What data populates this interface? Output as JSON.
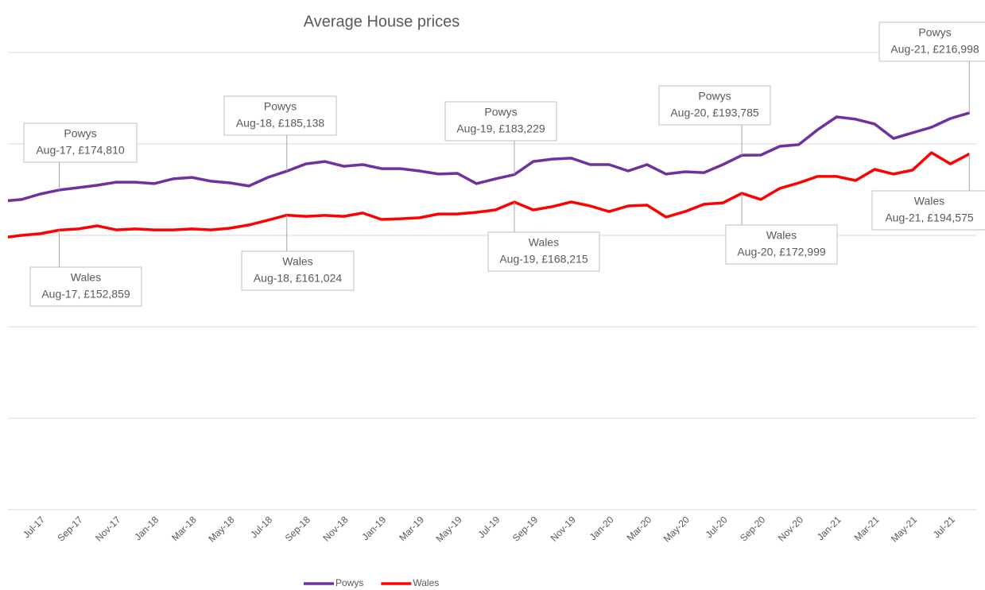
{
  "chart_data": {
    "type": "line",
    "title": "Average House prices",
    "categories": [
      null,
      null,
      "Jul-17",
      null,
      "Sep-17",
      null,
      "Nov-17",
      null,
      "Jan-18",
      null,
      "Mar-18",
      null,
      "May-18",
      null,
      "Jul-18",
      null,
      "Sep-18",
      null,
      "Nov-18",
      null,
      "Jan-19",
      null,
      "Mar-19",
      null,
      "May-19",
      null,
      "Jul-19",
      null,
      "Sep-19",
      null,
      "Nov-19",
      null,
      "Jan-20",
      null,
      "Mar-20",
      null,
      "May-20",
      null,
      "Jul-20",
      null,
      "Sep-20",
      null,
      "Nov-20",
      null,
      "Jan-21",
      null,
      "Mar-21",
      null,
      "May-21",
      null,
      "Jul-21",
      null
    ],
    "series": [
      {
        "name": "Powys",
        "color": "#7030a0",
        "values": [
          168700,
          169600,
          172600,
          174810,
          176100,
          177400,
          179100,
          179100,
          178300,
          180900,
          181700,
          179600,
          178700,
          177000,
          181700,
          185138,
          189100,
          190400,
          187800,
          188700,
          186500,
          186500,
          185200,
          183500,
          183900,
          178300,
          180900,
          183229,
          190400,
          191700,
          192200,
          188700,
          188700,
          185200,
          188700,
          183500,
          184800,
          184300,
          188700,
          193785,
          193900,
          198700,
          199600,
          207800,
          214800,
          213500,
          210900,
          203000,
          206100,
          209100,
          213900,
          216998
        ],
        "value_labels": [
          null,
          null,
          null,
          "Aug-17, £174,810",
          null,
          null,
          null,
          null,
          null,
          null,
          null,
          null,
          null,
          null,
          null,
          "Aug-18, £185,138",
          null,
          null,
          null,
          null,
          null,
          null,
          null,
          null,
          null,
          null,
          null,
          "Aug-19, £183,229",
          null,
          null,
          null,
          null,
          null,
          null,
          null,
          null,
          null,
          null,
          null,
          "Aug-20, £193,785",
          null,
          null,
          null,
          null,
          null,
          null,
          null,
          null,
          null,
          null,
          null,
          "Aug-21, £216,998"
        ]
      },
      {
        "name": "Wales",
        "color": "#ff0000",
        "values": [
          148700,
          150000,
          150900,
          152859,
          153500,
          155200,
          153000,
          153500,
          153000,
          153000,
          153500,
          153000,
          153900,
          155700,
          158300,
          161024,
          160400,
          160900,
          160400,
          162200,
          158700,
          159100,
          159600,
          161700,
          161700,
          162600,
          163900,
          168215,
          163900,
          165700,
          168300,
          166100,
          163000,
          166100,
          166500,
          160000,
          163000,
          167000,
          167800,
          172999,
          169600,
          175700,
          178700,
          182200,
          182200,
          180000,
          186100,
          183500,
          185700,
          195200,
          189100,
          194575
        ],
        "value_labels": [
          null,
          null,
          null,
          "Aug-17, £152,859",
          null,
          null,
          null,
          null,
          null,
          null,
          null,
          null,
          null,
          null,
          null,
          "Aug-18, £161,024",
          null,
          null,
          null,
          null,
          null,
          null,
          null,
          null,
          null,
          null,
          null,
          "Aug-19, £168,215",
          null,
          null,
          null,
          null,
          null,
          null,
          null,
          null,
          null,
          null,
          null,
          "Aug-20, £172,999",
          null,
          null,
          null,
          null,
          null,
          null,
          null,
          null,
          null,
          null,
          null,
          "Aug-21, £194,575"
        ]
      }
    ],
    "ylim": [
      0,
      250000
    ],
    "yticks": [
      0,
      50000,
      100000,
      150000,
      200000,
      250000
    ],
    "grid": true,
    "legend": "bottom"
  }
}
